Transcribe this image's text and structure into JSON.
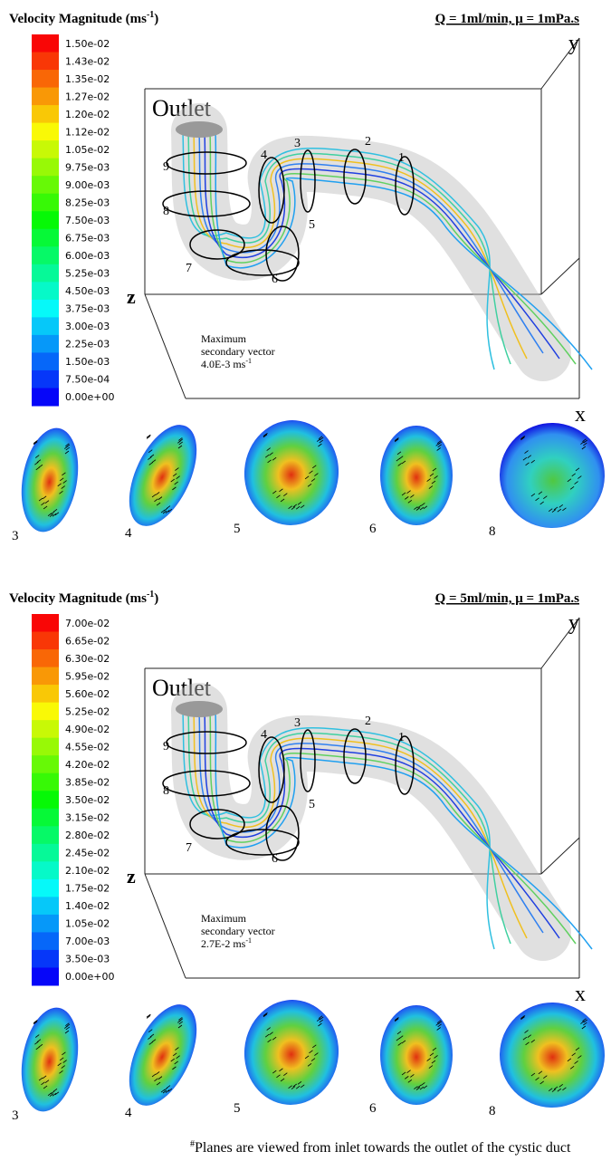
{
  "panels": [
    {
      "title": {
        "text": "Velocity Magnitude (ms",
        "sup": "-1",
        "end": ")"
      },
      "condition": "Q = 1ml/min, μ = 1mPa.s",
      "colorbar_labels": [
        "1.50e-02",
        "1.43e-02",
        "1.35e-02",
        "1.27e-02",
        "1.20e-02",
        "1.12e-02",
        "1.05e-02",
        "9.75e-03",
        "9.00e-03",
        "8.25e-03",
        "7.50e-03",
        "6.75e-03",
        "6.00e-03",
        "5.25e-03",
        "4.50e-03",
        "3.75e-03",
        "3.00e-03",
        "2.25e-03",
        "1.50e-03",
        "7.50e-04",
        "0.00e+00"
      ],
      "outlet": "Outlet",
      "axes": {
        "y": "y",
        "z": "z",
        "x": "x"
      },
      "plane_labels": [
        "1",
        "2",
        "3",
        "4",
        "5",
        "6",
        "7",
        "8",
        "9"
      ],
      "annotation": {
        "lines": [
          "Maximum",
          "secondary  vector"
        ],
        "value": "4.0E-3 ms",
        "sup": "-1"
      },
      "sections": [
        "3",
        "4",
        "5",
        "6",
        "8"
      ]
    },
    {
      "title": {
        "text": "Velocity Magnitude (ms",
        "sup": "-1",
        "end": ")"
      },
      "condition": "Q = 5ml/min, μ = 1mPa.s",
      "colorbar_labels": [
        "7.00e-02",
        "6.65e-02",
        "6.30e-02",
        "5.95e-02",
        "5.60e-02",
        "5.25e-02",
        "4.90e-02",
        "4.55e-02",
        "4.20e-02",
        "3.85e-02",
        "3.50e-02",
        "3.15e-02",
        "2.80e-02",
        "2.45e-02",
        "2.10e-02",
        "1.75e-02",
        "1.40e-02",
        "1.05e-02",
        "7.00e-03",
        "3.50e-03",
        "0.00e+00"
      ],
      "outlet": "Outlet",
      "axes": {
        "y": "y",
        "z": "z",
        "x": "x"
      },
      "plane_labels": [
        "1",
        "2",
        "3",
        "4",
        "5",
        "6",
        "7",
        "8",
        "9"
      ],
      "annotation": {
        "lines": [
          "Maximum",
          "secondary  vector"
        ],
        "value": "2.7E-2 ms",
        "sup": "-1"
      },
      "sections": [
        "3",
        "4",
        "5",
        "6",
        "8"
      ]
    }
  ],
  "footnote": {
    "mark": "#",
    "text": "Planes are viewed from inlet towards the outlet of the cystic duct"
  }
}
